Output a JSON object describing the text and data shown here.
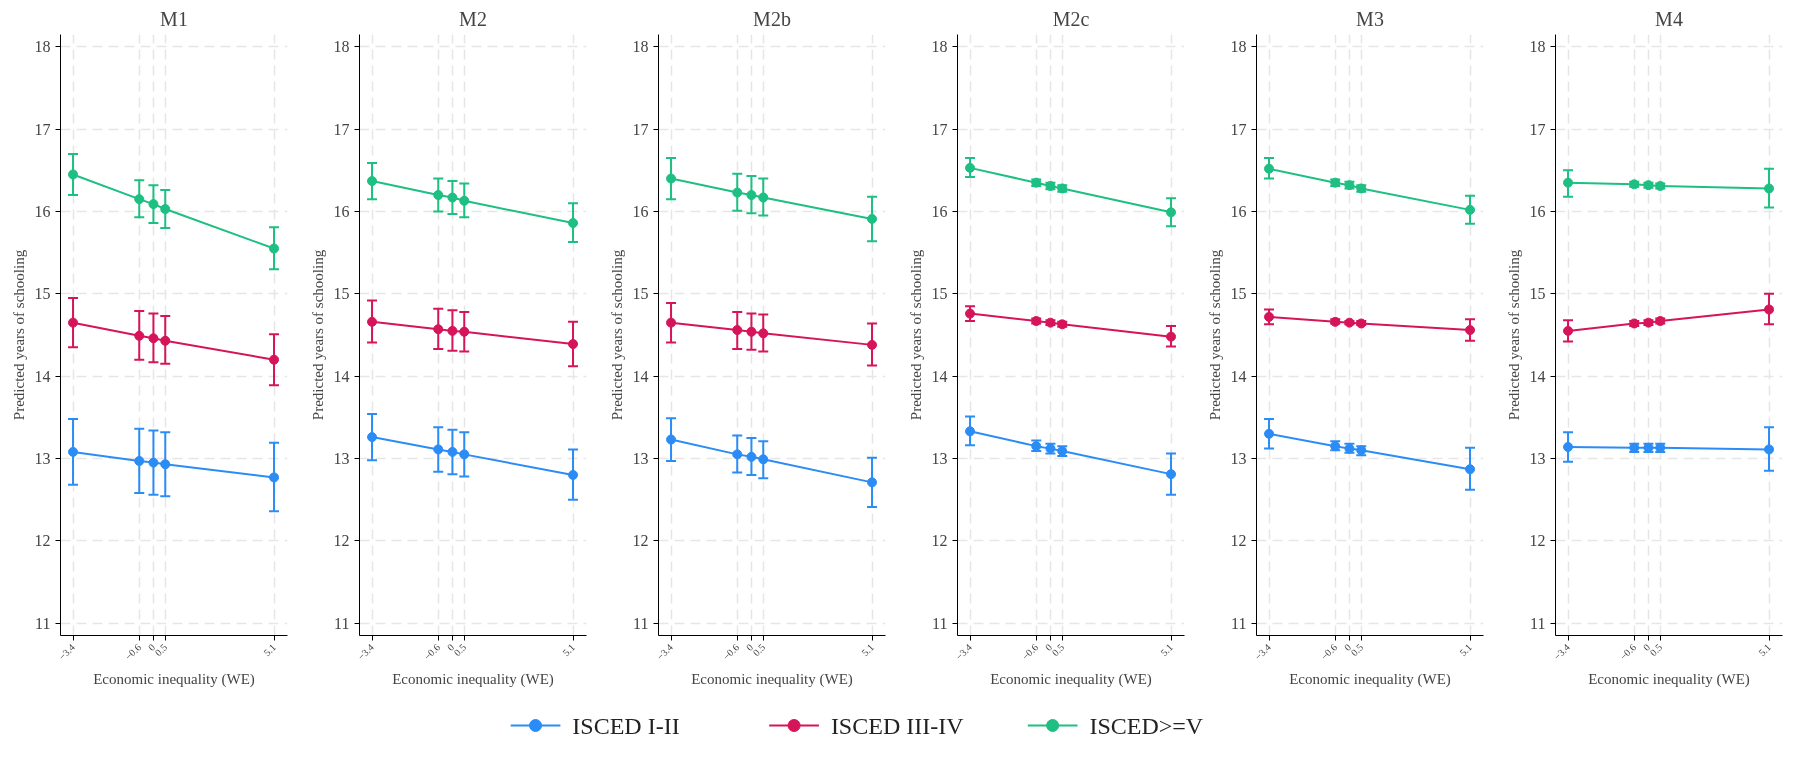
{
  "chart_data": [
    {
      "type": "line",
      "title": "M1",
      "xlabel": "Economic inequality (WE)",
      "ylabel": "Predicted years of schooling",
      "x": [
        -3.4,
        -0.6,
        0,
        0.5,
        5.1
      ],
      "xlim": [
        -3.93,
        5.67
      ],
      "xticks": [
        -3.4,
        -0.6,
        0,
        0.5,
        5.1
      ],
      "ylim": [
        10.85,
        18.15
      ],
      "yticks": [
        11,
        12,
        13,
        14,
        15,
        16,
        17,
        18
      ],
      "grid": true,
      "marker": "circle",
      "legend": "bottom",
      "series": [
        {
          "name": "ISCED I-II",
          "color": "#2b8cf5",
          "values": [
            13.08,
            12.97,
            12.95,
            12.93,
            12.77
          ],
          "errors": [
            [
              12.68,
              13.48
            ],
            [
              12.58,
              13.36
            ],
            [
              12.56,
              13.34
            ],
            [
              12.54,
              13.32
            ],
            [
              12.36,
              13.19
            ]
          ]
        },
        {
          "name": "ISCED III-IV",
          "color": "#d6145a",
          "values": [
            14.65,
            14.49,
            14.46,
            14.43,
            14.2
          ],
          "errors": [
            [
              14.35,
              14.95
            ],
            [
              14.2,
              14.79
            ],
            [
              14.17,
              14.76
            ],
            [
              14.15,
              14.73
            ],
            [
              13.89,
              14.51
            ]
          ]
        },
        {
          "name": "ISCED>=V",
          "color": "#1dbf82",
          "values": [
            16.45,
            16.15,
            16.09,
            16.03,
            15.55
          ],
          "errors": [
            [
              16.2,
              16.7
            ],
            [
              15.93,
              16.38
            ],
            [
              15.86,
              16.32
            ],
            [
              15.8,
              16.26
            ],
            [
              15.3,
              15.81
            ]
          ]
        }
      ]
    },
    {
      "type": "line",
      "title": "M2",
      "xlabel": "Economic inequality (WE)",
      "ylabel": "Predicted years of schooling",
      "x": [
        -3.4,
        -0.6,
        0,
        0.5,
        5.1
      ],
      "xlim": [
        -3.93,
        5.67
      ],
      "xticks": [
        -3.4,
        -0.6,
        0,
        0.5,
        5.1
      ],
      "ylim": [
        10.85,
        18.15
      ],
      "yticks": [
        11,
        12,
        13,
        14,
        15,
        16,
        17,
        18
      ],
      "grid": true,
      "marker": "circle",
      "series": [
        {
          "color": "#2b8cf5",
          "values": [
            13.26,
            13.11,
            13.08,
            13.05,
            12.8
          ],
          "errors": [
            [
              12.98,
              13.54
            ],
            [
              12.84,
              13.38
            ],
            [
              12.81,
              13.35
            ],
            [
              12.78,
              13.32
            ],
            [
              12.5,
              13.11
            ]
          ]
        },
        {
          "color": "#d6145a",
          "values": [
            14.66,
            14.57,
            14.55,
            14.54,
            14.39
          ],
          "errors": [
            [
              14.41,
              14.92
            ],
            [
              14.33,
              14.82
            ],
            [
              14.31,
              14.8
            ],
            [
              14.3,
              14.78
            ],
            [
              14.12,
              14.66
            ]
          ]
        },
        {
          "color": "#1dbf82",
          "values": [
            16.37,
            16.2,
            16.17,
            16.13,
            15.86
          ],
          "errors": [
            [
              16.15,
              16.59
            ],
            [
              16.0,
              16.4
            ],
            [
              15.97,
              16.37
            ],
            [
              15.93,
              16.34
            ],
            [
              15.63,
              16.1
            ]
          ]
        }
      ]
    },
    {
      "type": "line",
      "title": "M2b",
      "xlabel": "Economic inequality (WE)",
      "ylabel": "Predicted years of schooling",
      "x": [
        -3.4,
        -0.6,
        0,
        0.5,
        5.1
      ],
      "xlim": [
        -3.93,
        5.67
      ],
      "xticks": [
        -3.4,
        -0.6,
        0,
        0.5,
        5.1
      ],
      "ylim": [
        10.85,
        18.15
      ],
      "yticks": [
        11,
        12,
        13,
        14,
        15,
        16,
        17,
        18
      ],
      "grid": true,
      "marker": "circle",
      "series": [
        {
          "color": "#2b8cf5",
          "values": [
            13.23,
            13.05,
            13.02,
            12.99,
            12.71
          ],
          "errors": [
            [
              12.97,
              13.49
            ],
            [
              12.83,
              13.28
            ],
            [
              12.8,
              13.25
            ],
            [
              12.76,
              13.21
            ],
            [
              12.41,
              13.01
            ]
          ]
        },
        {
          "color": "#d6145a",
          "values": [
            14.65,
            14.56,
            14.54,
            14.52,
            14.38
          ],
          "errors": [
            [
              14.41,
              14.89
            ],
            [
              14.33,
              14.78
            ],
            [
              14.32,
              14.76
            ],
            [
              14.3,
              14.75
            ],
            [
              14.13,
              14.64
            ]
          ]
        },
        {
          "color": "#1dbf82",
          "values": [
            16.4,
            16.23,
            16.2,
            16.17,
            15.91
          ],
          "errors": [
            [
              16.15,
              16.65
            ],
            [
              16.01,
              16.46
            ],
            [
              15.98,
              16.43
            ],
            [
              15.95,
              16.4
            ],
            [
              15.64,
              16.18
            ]
          ]
        }
      ]
    },
    {
      "type": "line",
      "title": "M2c",
      "xlabel": "Economic inequality (WE)",
      "ylabel": "Predicted years of schooling",
      "x": [
        -3.4,
        -0.6,
        0,
        0.5,
        5.1
      ],
      "xlim": [
        -3.93,
        5.67
      ],
      "xticks": [
        -3.4,
        -0.6,
        0,
        0.5,
        5.1
      ],
      "ylim": [
        10.85,
        18.15
      ],
      "yticks": [
        11,
        12,
        13,
        14,
        15,
        16,
        17,
        18
      ],
      "grid": true,
      "marker": "circle",
      "series": [
        {
          "color": "#2b8cf5",
          "values": [
            13.33,
            13.15,
            13.12,
            13.09,
            12.81
          ],
          "errors": [
            [
              13.16,
              13.51
            ],
            [
              13.09,
              13.22
            ],
            [
              13.06,
              13.18
            ],
            [
              13.03,
              13.15
            ],
            [
              12.56,
              13.06
            ]
          ]
        },
        {
          "color": "#d6145a",
          "values": [
            14.76,
            14.67,
            14.65,
            14.63,
            14.48
          ],
          "errors": [
            [
              14.67,
              14.85
            ],
            [
              14.64,
              14.7
            ],
            [
              14.62,
              14.68
            ],
            [
              14.6,
              14.66
            ],
            [
              14.36,
              14.61
            ]
          ]
        },
        {
          "color": "#1dbf82",
          "values": [
            16.53,
            16.35,
            16.31,
            16.28,
            15.99
          ],
          "errors": [
            [
              16.42,
              16.65
            ],
            [
              16.31,
              16.39
            ],
            [
              16.27,
              16.35
            ],
            [
              16.24,
              16.32
            ],
            [
              15.82,
              16.16
            ]
          ]
        }
      ]
    },
    {
      "type": "line",
      "title": "M3",
      "xlabel": "Economic inequality (WE)",
      "ylabel": "Predicted years of schooling",
      "x": [
        -3.4,
        -0.6,
        0,
        0.5,
        5.1
      ],
      "xlim": [
        -3.93,
        5.67
      ],
      "xticks": [
        -3.4,
        -0.6,
        0,
        0.5,
        5.1
      ],
      "ylim": [
        10.85,
        18.15
      ],
      "yticks": [
        11,
        12,
        13,
        14,
        15,
        16,
        17,
        18
      ],
      "grid": true,
      "marker": "circle",
      "series": [
        {
          "color": "#2b8cf5",
          "values": [
            13.3,
            13.15,
            13.12,
            13.1,
            12.87
          ],
          "errors": [
            [
              13.12,
              13.48
            ],
            [
              13.1,
              13.21
            ],
            [
              13.07,
              13.18
            ],
            [
              13.04,
              13.15
            ],
            [
              12.62,
              13.13
            ]
          ]
        },
        {
          "color": "#d6145a",
          "values": [
            14.72,
            14.66,
            14.65,
            14.64,
            14.56
          ],
          "errors": [
            [
              14.63,
              14.81
            ],
            [
              14.64,
              14.69
            ],
            [
              14.63,
              14.67
            ],
            [
              14.62,
              14.67
            ],
            [
              14.43,
              14.69
            ]
          ]
        },
        {
          "color": "#1dbf82",
          "values": [
            16.52,
            16.35,
            16.32,
            16.28,
            16.02
          ],
          "errors": [
            [
              16.4,
              16.65
            ],
            [
              16.31,
              16.39
            ],
            [
              16.28,
              16.36
            ],
            [
              16.24,
              16.32
            ],
            [
              15.85,
              16.19
            ]
          ]
        }
      ]
    },
    {
      "type": "line",
      "title": "M4",
      "xlabel": "Economic inequality (WE)",
      "ylabel": "Predicted years of schooling",
      "x": [
        -3.4,
        -0.6,
        0,
        0.5,
        5.1
      ],
      "xlim": [
        -3.93,
        5.67
      ],
      "xticks": [
        -3.4,
        -0.6,
        0,
        0.5,
        5.1
      ],
      "ylim": [
        10.85,
        18.15
      ],
      "yticks": [
        11,
        12,
        13,
        14,
        15,
        16,
        17,
        18
      ],
      "grid": true,
      "marker": "circle",
      "series": [
        {
          "color": "#2b8cf5",
          "values": [
            13.14,
            13.13,
            13.13,
            13.13,
            13.11
          ],
          "errors": [
            [
              12.96,
              13.32
            ],
            [
              13.08,
              13.18
            ],
            [
              13.08,
              13.18
            ],
            [
              13.08,
              13.18
            ],
            [
              12.85,
              13.38
            ]
          ]
        },
        {
          "color": "#d6145a",
          "values": [
            14.55,
            14.64,
            14.65,
            14.67,
            14.81
          ],
          "errors": [
            [
              14.42,
              14.68
            ],
            [
              14.61,
              14.67
            ],
            [
              14.62,
              14.68
            ],
            [
              14.64,
              14.7
            ],
            [
              14.63,
              15.0
            ]
          ]
        },
        {
          "color": "#1dbf82",
          "values": [
            16.35,
            16.33,
            16.32,
            16.31,
            16.28
          ],
          "errors": [
            [
              16.18,
              16.5
            ],
            [
              16.3,
              16.36
            ],
            [
              16.29,
              16.35
            ],
            [
              16.28,
              16.34
            ],
            [
              16.05,
              16.52
            ]
          ]
        }
      ]
    }
  ]
}
